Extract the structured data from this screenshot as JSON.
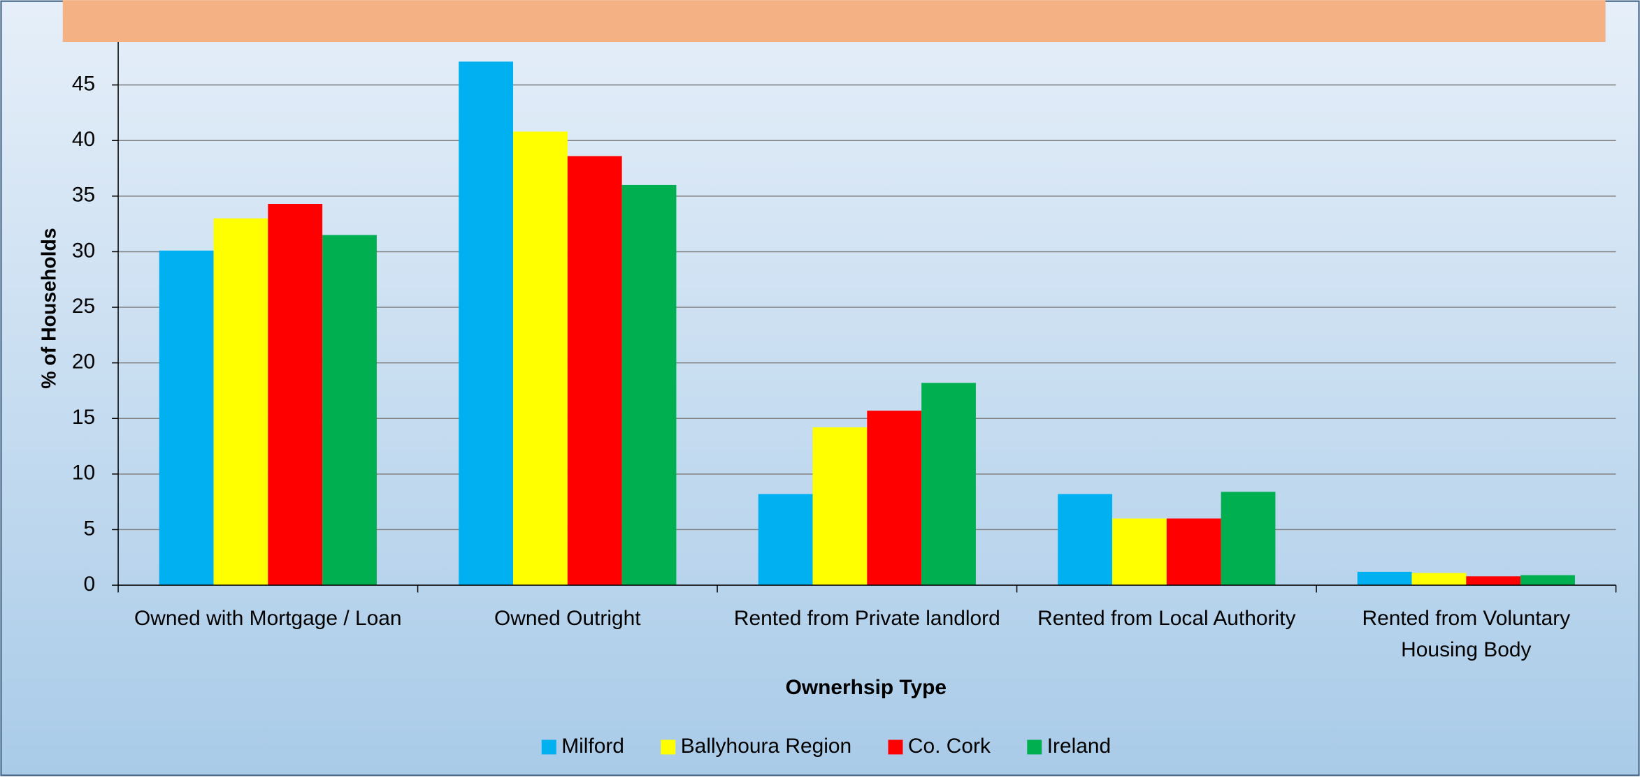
{
  "chart_data": {
    "type": "bar",
    "categories": [
      "Owned with Mortgage / Loan",
      "Owned Outright",
      "Rented from Private landlord",
      "Rented from Local Authority",
      "Rented from Voluntary Housing Body"
    ],
    "series": [
      {
        "name": "Milford",
        "color": "#00b0f0",
        "values": [
          30.1,
          47.1,
          8.2,
          8.2,
          1.2
        ]
      },
      {
        "name": "Ballyhoura Region",
        "color": "#ffff00",
        "values": [
          33.0,
          40.8,
          14.2,
          6.0,
          1.1
        ]
      },
      {
        "name": "Co. Cork",
        "color": "#ff0000",
        "values": [
          34.3,
          38.6,
          15.7,
          6.0,
          0.8
        ]
      },
      {
        "name": "Ireland",
        "color": "#00b050",
        "values": [
          31.5,
          36.0,
          18.2,
          8.4,
          0.9
        ]
      }
    ],
    "xlabel": "Ownerhsip Type",
    "ylabel": "% of Households",
    "ylim": [
      0,
      50
    ],
    "yticks": [
      0,
      5,
      10,
      15,
      20,
      25,
      30,
      35,
      40,
      45
    ],
    "grid": true,
    "legend": "bottom"
  }
}
